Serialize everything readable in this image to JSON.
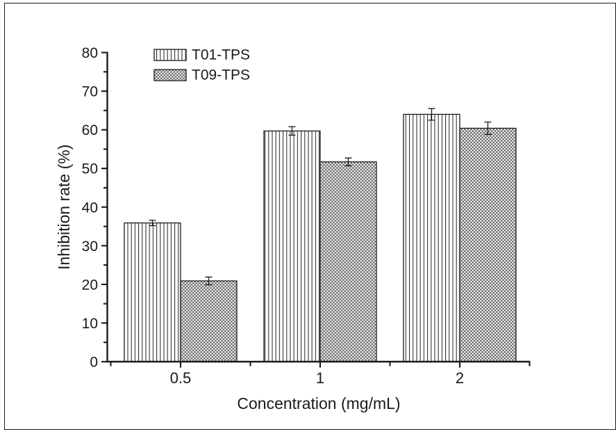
{
  "figure": {
    "background": "#ffffff",
    "border_color": "#1a1a1a"
  },
  "chart_data": {
    "type": "bar",
    "title": "",
    "xlabel": "Concentration (mg/mL)",
    "ylabel": "Inhibition rate (%)",
    "categories": [
      "0.5",
      "1",
      "2"
    ],
    "series": [
      {
        "name": "T01-TPS",
        "pattern": "vertical-lines",
        "values": [
          35.9,
          59.7,
          64.0
        ],
        "errors": [
          0.7,
          1.1,
          1.5
        ]
      },
      {
        "name": "T09-TPS",
        "pattern": "diagonal-crosshatch",
        "values": [
          20.9,
          51.7,
          60.4
        ],
        "errors": [
          1.0,
          1.0,
          1.6
        ]
      }
    ],
    "ylim": [
      0,
      80
    ],
    "ytick_step": 10,
    "ytick_minor_step": 5,
    "yticks": [
      "0",
      "10",
      "20",
      "30",
      "40",
      "50",
      "60",
      "70",
      "80"
    ],
    "legend_position": "top-left-inside",
    "grid": "off",
    "line_color": "#1a1a1a",
    "bar_fill": "#ffffff"
  }
}
